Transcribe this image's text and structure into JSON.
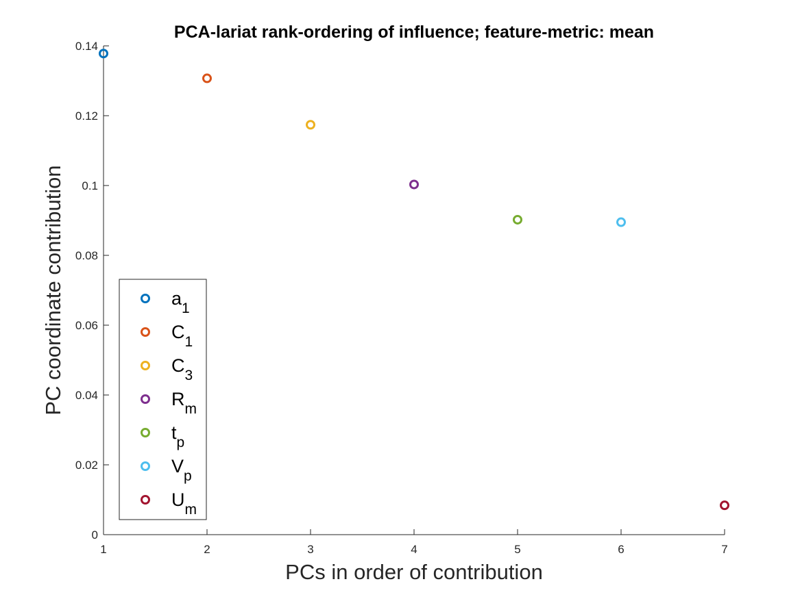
{
  "chart_data": {
    "type": "scatter",
    "title": "PCA-lariat rank-ordering of influence; feature-metric: mean",
    "xlabel": "PCs in order of contribution",
    "ylabel": "PC coordinate contribution",
    "xlim": [
      1,
      7
    ],
    "ylim": [
      0,
      0.14
    ],
    "xticks": [
      "1",
      "2",
      "3",
      "4",
      "5",
      "6",
      "7"
    ],
    "yticks": [
      "0",
      "0.02",
      "0.04",
      "0.06",
      "0.08",
      "0.1",
      "0.12",
      "0.14"
    ],
    "grid": false,
    "legend_position": "bottom-left",
    "series": [
      {
        "name": "a",
        "sub": "1",
        "x": 1,
        "y": 0.1378,
        "color": "#0072bd"
      },
      {
        "name": "C",
        "sub": "1",
        "x": 2,
        "y": 0.1307,
        "color": "#d95319"
      },
      {
        "name": "C",
        "sub": "3",
        "x": 3,
        "y": 0.1174,
        "color": "#edb120"
      },
      {
        "name": "R",
        "sub": "m",
        "x": 4,
        "y": 0.1003,
        "color": "#7e2f8e"
      },
      {
        "name": "t",
        "sub": "p",
        "x": 5,
        "y": 0.0902,
        "color": "#77ac30"
      },
      {
        "name": "V",
        "sub": "p",
        "x": 6,
        "y": 0.0895,
        "color": "#4dbeee"
      },
      {
        "name": "U",
        "sub": "m",
        "x": 7,
        "y": 0.0084,
        "color": "#a2142f"
      }
    ]
  }
}
